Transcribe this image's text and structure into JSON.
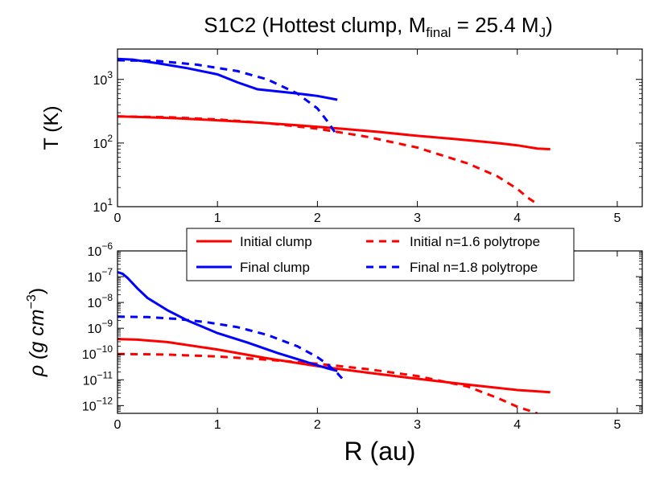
{
  "title": "S1C2 (Hottest clump,  M",
  "title_sub": "final",
  "title_mid": " = 25.4 M",
  "title_sub2": "J",
  "title_end": ")",
  "chart_data": [
    {
      "type": "line",
      "yscale": "log",
      "xlim": [
        0,
        5.25
      ],
      "ylim": [
        10,
        3000
      ],
      "xlabel": "",
      "ylabel": "T (K)",
      "xticks": [
        "0",
        "1",
        "2",
        "3",
        "4",
        "5"
      ],
      "yticks": [
        {
          "base": "10",
          "exp": "1",
          "value": 10
        },
        {
          "base": "10",
          "exp": "2",
          "value": 100
        },
        {
          "base": "10",
          "exp": "3",
          "value": 1000
        }
      ],
      "series": [
        {
          "name": "Initial clump",
          "color": "#ff0000",
          "dash": false,
          "x": [
            0,
            0.3,
            0.6,
            1.0,
            1.4,
            1.8,
            2.2,
            2.6,
            3.0,
            3.4,
            3.8,
            4.0,
            4.2,
            4.33
          ],
          "y": [
            262,
            255,
            245,
            228,
            210,
            190,
            170,
            150,
            130,
            115,
            100,
            92,
            82,
            80
          ]
        },
        {
          "name": "Initial n=1.6 polytrope",
          "color": "#ff0000",
          "dash": true,
          "x": [
            0,
            0.5,
            1.0,
            1.5,
            2.0,
            2.5,
            3.0,
            3.5,
            3.8,
            4.0,
            4.1,
            4.2
          ],
          "y": [
            262,
            255,
            235,
            205,
            168,
            125,
            85,
            48,
            30,
            19,
            14,
            11
          ]
        },
        {
          "name": "Final clump",
          "color": "#0000ff",
          "dash": false,
          "x": [
            0,
            0.15,
            0.4,
            0.7,
            1.0,
            1.2,
            1.4,
            1.6,
            1.8,
            2.0,
            2.2
          ],
          "y": [
            2100,
            2050,
            1800,
            1500,
            1200,
            900,
            700,
            650,
            600,
            550,
            480
          ]
        },
        {
          "name": "Final n=1.8 polytrope",
          "color": "#0000ff",
          "dash": true,
          "x": [
            0,
            0.4,
            0.8,
            1.2,
            1.5,
            1.8,
            2.0,
            2.1,
            2.2
          ],
          "y": [
            2000,
            1950,
            1700,
            1350,
            1000,
            600,
            350,
            220,
            130
          ]
        }
      ]
    },
    {
      "type": "line",
      "yscale": "log",
      "xlim": [
        0,
        5.25
      ],
      "ylim": [
        5e-13,
        1e-06
      ],
      "xlabel": "R (au)",
      "ylabel": "ρ (g cm",
      "ylabel_sup": "−3",
      "ylabel_end": ")",
      "xticks": [
        "0",
        "1",
        "2",
        "3",
        "4",
        "5"
      ],
      "yticks": [
        {
          "base": "10",
          "exp": "−12",
          "value": 1e-12
        },
        {
          "base": "10",
          "exp": "−11",
          "value": 1e-11
        },
        {
          "base": "10",
          "exp": "−10",
          "value": 1e-10
        },
        {
          "base": "10",
          "exp": "−9",
          "value": 1e-09
        },
        {
          "base": "10",
          "exp": "−8",
          "value": 1e-08
        },
        {
          "base": "10",
          "exp": "−7",
          "value": 1e-07
        },
        {
          "base": "10",
          "exp": "−6",
          "value": 1e-06
        }
      ],
      "series": [
        {
          "name": "Initial clump",
          "color": "#ff0000",
          "dash": false,
          "x": [
            0,
            0.2,
            0.5,
            1.0,
            1.5,
            2.0,
            2.5,
            3.0,
            3.5,
            4.0,
            4.33
          ],
          "y": [
            3.8e-10,
            3.6e-10,
            2.9e-10,
            1.5e-10,
            6.8e-11,
            3.4e-11,
            1.9e-11,
            1.1e-11,
            6.5e-12,
            4e-12,
            3.3e-12
          ]
        },
        {
          "name": "Initial n=1.6 polytrope",
          "color": "#ff0000",
          "dash": true,
          "x": [
            0,
            0.5,
            1.0,
            1.5,
            2.0,
            2.5,
            3.0,
            3.5,
            3.8,
            4.0,
            4.2
          ],
          "y": [
            1e-10,
            9.5e-11,
            8e-11,
            6e-11,
            4.2e-11,
            2.6e-11,
            1.4e-11,
            5.5e-12,
            2e-12,
            9e-13,
            5e-13
          ]
        },
        {
          "name": "Final clump",
          "color": "#0000ff",
          "dash": false,
          "x": [
            0,
            0.05,
            0.1,
            0.2,
            0.3,
            0.5,
            0.7,
            1.0,
            1.3,
            1.6,
            1.9,
            2.1,
            2.2
          ],
          "y": [
            1.5e-07,
            1.3e-07,
            9e-08,
            3.5e-08,
            1.5e-08,
            5e-09,
            2e-09,
            6.5e-10,
            2.8e-10,
            1.1e-10,
            4.8e-11,
            2.8e-11,
            2.2e-11
          ]
        },
        {
          "name": "Final n=1.8 polytrope",
          "color": "#0000ff",
          "dash": true,
          "x": [
            0,
            0.3,
            0.6,
            0.9,
            1.2,
            1.5,
            1.8,
            2.0,
            2.1,
            2.2,
            2.25
          ],
          "y": [
            2.8e-09,
            2.7e-09,
            2.3e-09,
            1.7e-09,
            1.1e-09,
            5.5e-10,
            2e-10,
            7.5e-11,
            4e-11,
            1.8e-11,
            1.1e-11
          ]
        }
      ]
    }
  ],
  "legend": [
    {
      "label": "Initial clump",
      "color": "#ff0000",
      "dash": false
    },
    {
      "label": "Initial n=1.6 polytrope",
      "color": "#ff0000",
      "dash": true
    },
    {
      "label": "Final clump",
      "color": "#0000ff",
      "dash": false
    },
    {
      "label": "Final n=1.8 polytrope",
      "color": "#0000ff",
      "dash": true
    }
  ]
}
